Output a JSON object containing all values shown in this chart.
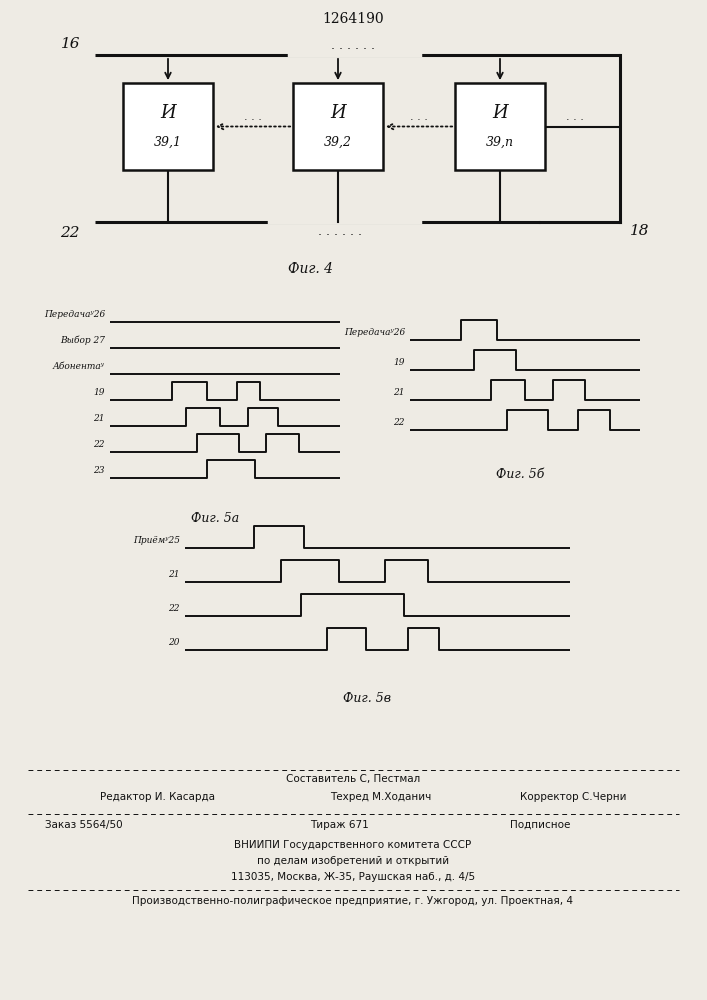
{
  "title": "1264190",
  "fig4_label": "Фиг. 4",
  "fig5a_label": "Фиг. 5а",
  "fig5b_label": "Фиг. 5б",
  "fig5v_label": "Фиг. 5в",
  "bg_color": "#eeebe4",
  "line_color": "#111111",
  "box_top": [
    "И",
    "И",
    "И"
  ],
  "box_bot": [
    "39,1",
    "39,2",
    "39,n"
  ],
  "footer_compositor": "Составитель С, Пестмал",
  "footer_editor": "Редактор И. Касарда",
  "footer_techred": "Техред М.Ходанич",
  "footer_corrector": "Корректор С.Черни",
  "footer_order": "Заказ 5564/50",
  "footer_tirazh": "Тираж 671",
  "footer_podpisnoe": "Подписное",
  "footer_vniip1": "ВНИИПИ Государственного комитета СССР",
  "footer_vniip2": "по делам изобретений и открытий",
  "footer_address": "113035, Москва, Ж-35, Раушская наб., д. 4/5",
  "footer_factory": "Производственно-полиграфическое предприятие, г. Ужгород, ул. Проектная, 4"
}
